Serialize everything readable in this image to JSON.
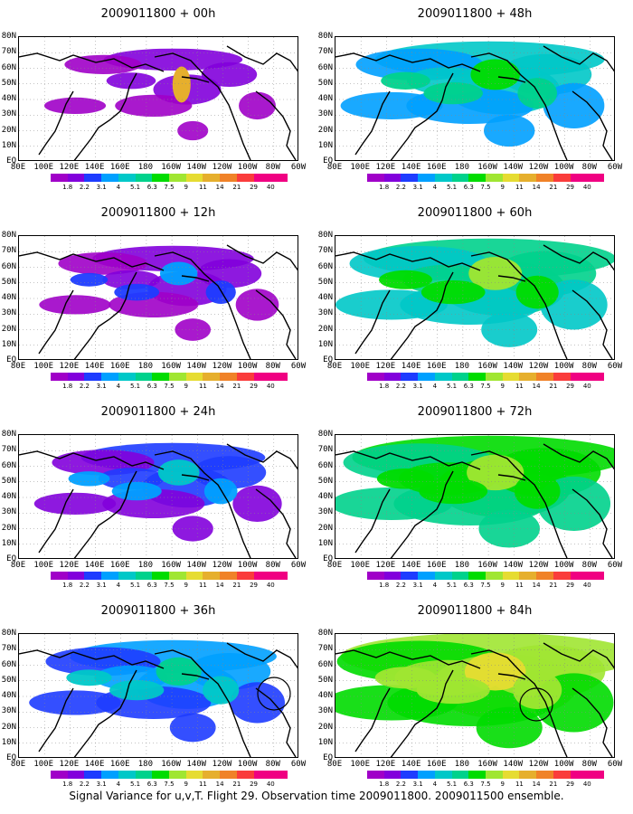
{
  "lat_labels": [
    "80N",
    "70N",
    "60N",
    "50N",
    "40N",
    "30N",
    "20N",
    "10N",
    "EQ"
  ],
  "lon_labels": [
    "80E",
    "100E",
    "120E",
    "140E",
    "160E",
    "180",
    "160W",
    "140W",
    "120W",
    "100W",
    "80W",
    "60W"
  ],
  "colorbar": {
    "labels": [
      "1.8",
      "2.2",
      "3.1",
      "4",
      "5.1",
      "6.3",
      "7.5",
      "9",
      "11",
      "14",
      "21",
      "29",
      "40"
    ],
    "colors": [
      "#a000c8",
      "#8200dc",
      "#1e3cff",
      "#00a0ff",
      "#00c8c8",
      "#00d28c",
      "#00dc00",
      "#a0e632",
      "#e6dc32",
      "#e6af2d",
      "#f08228",
      "#fa3c3c",
      "#f00082"
    ]
  },
  "panels": [
    {
      "title": "2009011800 + 00h",
      "intensity": 0
    },
    {
      "title": "2009011800 + 12h",
      "intensity": 1
    },
    {
      "title": "2009011800 + 24h",
      "intensity": 2
    },
    {
      "title": "2009011800 + 36h",
      "intensity": 3
    },
    {
      "title": "2009011800 + 48h",
      "intensity": 4
    },
    {
      "title": "2009011800 + 60h",
      "intensity": 5
    },
    {
      "title": "2009011800 + 72h",
      "intensity": 6
    },
    {
      "title": "2009011800 + 84h",
      "intensity": 7
    }
  ],
  "footer": "Signal Variance for u,v,T. Flight 29. Observation time 2009011800. 2009011500 ensemble."
}
